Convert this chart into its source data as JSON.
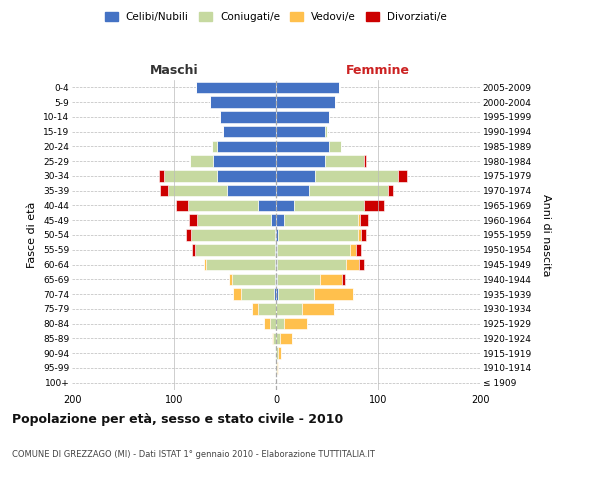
{
  "age_groups": [
    "100+",
    "95-99",
    "90-94",
    "85-89",
    "80-84",
    "75-79",
    "70-74",
    "65-69",
    "60-64",
    "55-59",
    "50-54",
    "45-49",
    "40-44",
    "35-39",
    "30-34",
    "25-29",
    "20-24",
    "15-19",
    "10-14",
    "5-9",
    "0-4"
  ],
  "birth_years": [
    "≤ 1909",
    "1910-1914",
    "1915-1919",
    "1920-1924",
    "1925-1929",
    "1930-1934",
    "1935-1939",
    "1940-1944",
    "1945-1949",
    "1950-1954",
    "1955-1959",
    "1960-1964",
    "1965-1969",
    "1970-1974",
    "1975-1979",
    "1980-1984",
    "1985-1989",
    "1990-1994",
    "1995-1999",
    "2000-2004",
    "2005-2009"
  ],
  "male": {
    "celibi": [
      0,
      0,
      0,
      0,
      0,
      0,
      2,
      1,
      1,
      1,
      1,
      5,
      18,
      48,
      58,
      62,
      58,
      52,
      55,
      65,
      78
    ],
    "coniugati": [
      0,
      0,
      1,
      3,
      6,
      18,
      32,
      42,
      68,
      78,
      82,
      72,
      68,
      58,
      52,
      22,
      5,
      0,
      0,
      0,
      0
    ],
    "vedovi": [
      0,
      0,
      0,
      1,
      6,
      6,
      8,
      3,
      2,
      0,
      0,
      0,
      0,
      0,
      0,
      0,
      0,
      0,
      0,
      0,
      0
    ],
    "divorziati": [
      0,
      0,
      0,
      0,
      0,
      0,
      0,
      0,
      0,
      3,
      5,
      8,
      12,
      8,
      5,
      0,
      0,
      0,
      0,
      0,
      0
    ]
  },
  "female": {
    "nubili": [
      0,
      0,
      0,
      0,
      0,
      0,
      2,
      1,
      1,
      1,
      2,
      8,
      18,
      32,
      38,
      48,
      52,
      48,
      52,
      58,
      62
    ],
    "coniugate": [
      0,
      1,
      2,
      4,
      8,
      25,
      35,
      42,
      68,
      72,
      78,
      72,
      68,
      78,
      82,
      38,
      12,
      2,
      0,
      0,
      0
    ],
    "vedove": [
      0,
      1,
      3,
      12,
      22,
      32,
      38,
      22,
      12,
      5,
      3,
      2,
      0,
      0,
      0,
      0,
      0,
      0,
      0,
      0,
      0
    ],
    "divorziate": [
      0,
      0,
      0,
      0,
      0,
      0,
      0,
      3,
      5,
      5,
      5,
      8,
      20,
      5,
      8,
      2,
      0,
      0,
      0,
      0,
      0
    ]
  },
  "colors": {
    "celibi": "#4472c4",
    "coniugati": "#c6d9a0",
    "vedovi": "#ffc04d",
    "divorziati": "#cc0000"
  },
  "title": "Popolazione per età, sesso e stato civile - 2010",
  "subtitle": "COMUNE DI GREZZAGO (MI) - Dati ISTAT 1° gennaio 2010 - Elaborazione TUTTITALIA.IT",
  "label_maschi": "Maschi",
  "label_femmine": "Femmine",
  "ylabel_left": "Fasce di età",
  "ylabel_right": "Anni di nascita",
  "xlim": 200,
  "legend_labels": [
    "Celibi/Nubili",
    "Coniugati/e",
    "Vedovi/e",
    "Divorziati/e"
  ],
  "background_color": "#ffffff"
}
